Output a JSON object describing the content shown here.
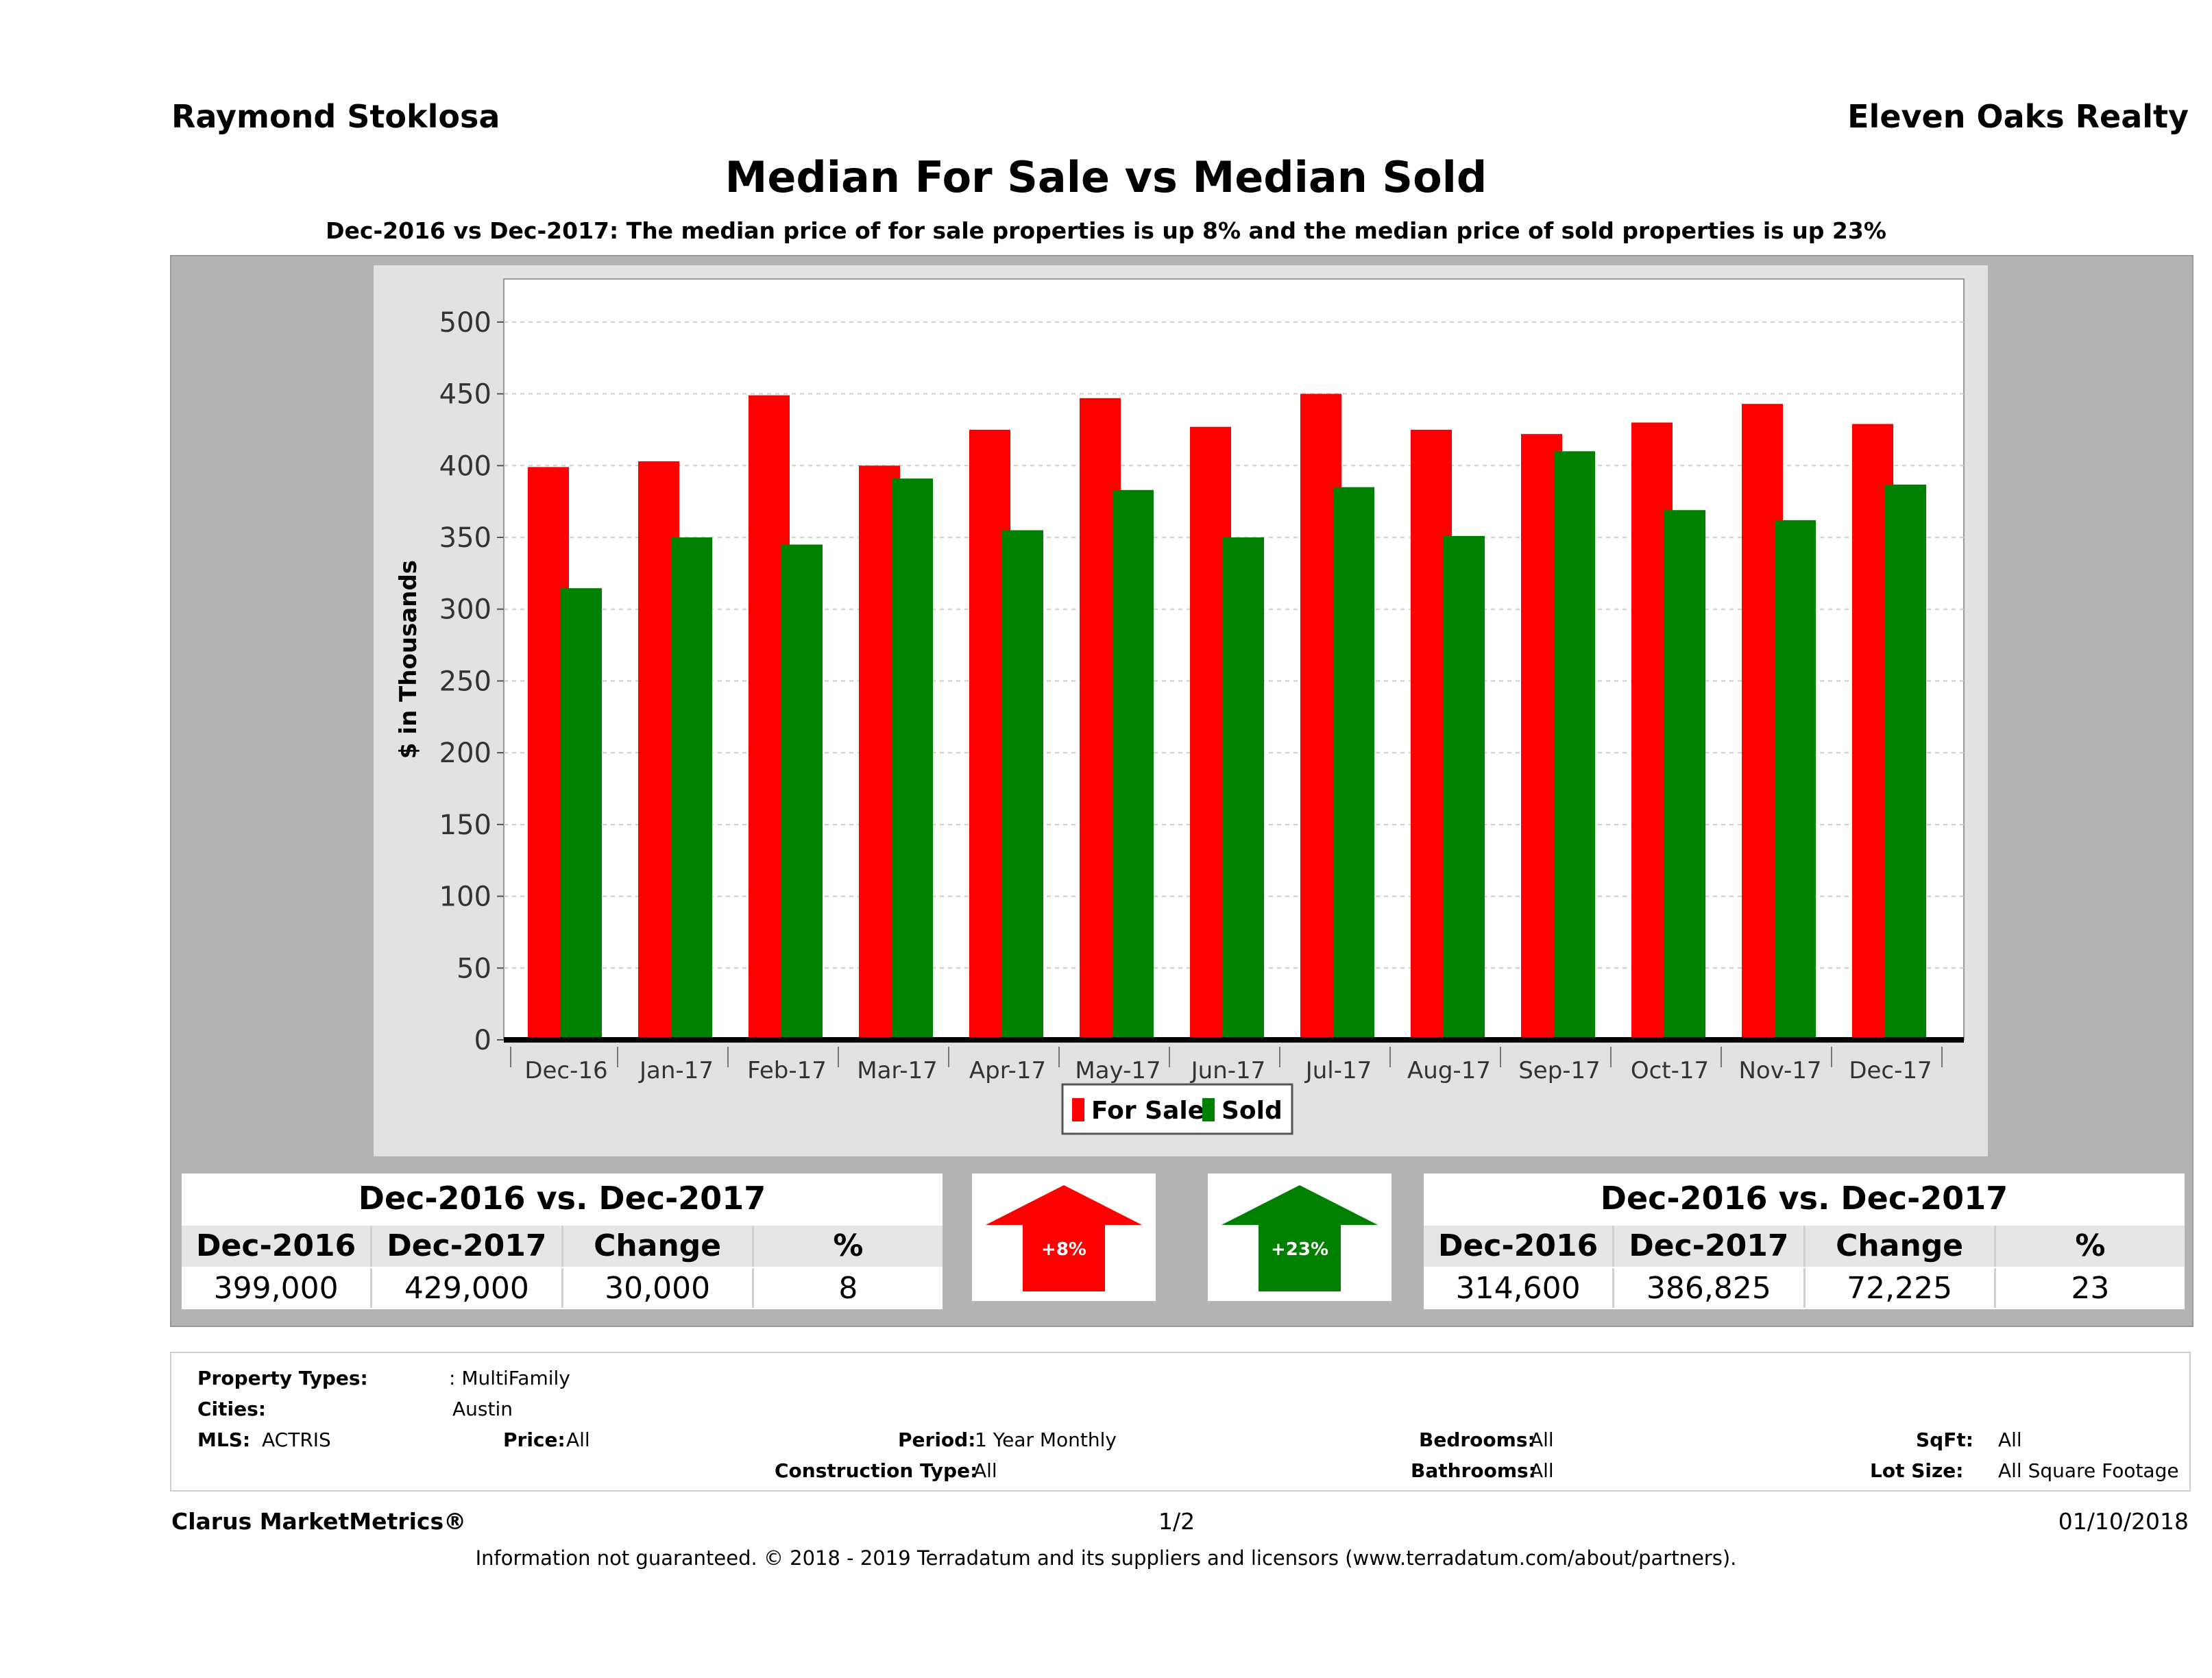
{
  "header": {
    "agent": "Raymond Stoklosa",
    "company": "Eleven Oaks Realty",
    "title": "Median For Sale vs Median Sold",
    "subtitle": "Dec-2016 vs Dec-2017: The median price of for sale properties is up 8% and the median price of sold properties is up 23%"
  },
  "chart_data": {
    "type": "bar",
    "categories": [
      "Dec-16",
      "Jan-17",
      "Feb-17",
      "Mar-17",
      "Apr-17",
      "May-17",
      "Jun-17",
      "Jul-17",
      "Aug-17",
      "Sep-17",
      "Oct-17",
      "Nov-17",
      "Dec-17"
    ],
    "series": [
      {
        "name": "For Sale",
        "color": "#ff0000",
        "values": [
          399,
          403,
          449,
          400,
          425,
          447,
          427,
          450,
          425,
          422,
          430,
          443,
          429
        ]
      },
      {
        "name": "Sold",
        "color": "#008000",
        "values": [
          314.6,
          350,
          345,
          391,
          355,
          383,
          350,
          385,
          351,
          410,
          369,
          362,
          386.8
        ]
      }
    ],
    "ylabel": "$ in Thousands",
    "ylim": [
      0,
      530
    ],
    "yticks": [
      "0",
      "50",
      "100",
      "150",
      "200",
      "250",
      "300",
      "350",
      "400",
      "450",
      "500"
    ],
    "grid": true,
    "legend": "bottom-center"
  },
  "for_sale_table": {
    "heading": "Dec-2016 vs. Dec-2017",
    "columns": [
      "Dec-2016",
      "Dec-2017",
      "Change",
      "%"
    ],
    "values": [
      "399,000",
      "429,000",
      "30,000",
      "8"
    ]
  },
  "for_sale_arrow": {
    "label": "+8%",
    "direction": "up",
    "color": "#ff0000"
  },
  "sold_arrow": {
    "label": "+23%",
    "direction": "up",
    "color": "#008000"
  },
  "sold_table": {
    "heading": "Dec-2016 vs. Dec-2017",
    "columns": [
      "Dec-2016",
      "Dec-2017",
      "Change",
      "%"
    ],
    "values": [
      "314,600",
      "386,825",
      "72,225",
      "23"
    ]
  },
  "filters": {
    "property_types_label": "Property Types:",
    "property_types_value": ": MultiFamily",
    "cities_label": "Cities:",
    "cities_value": "Austin",
    "mls_label": "MLS:",
    "mls_value": "ACTRIS",
    "price_label": "Price:",
    "price_value": "All",
    "period_label": "Period:",
    "period_value": "1 Year Monthly",
    "construction_label": "Construction Type:",
    "construction_value": "All",
    "bedrooms_label": "Bedrooms:",
    "bedrooms_value": "All",
    "bathrooms_label": "Bathrooms:",
    "bathrooms_value": "All",
    "sqft_label": "SqFt:",
    "sqft_value": "All",
    "lotsize_label": "Lot Size:",
    "lotsize_value": "All Square Footage"
  },
  "footer": {
    "brand": "Clarus MarketMetrics®",
    "page": "1/2",
    "date": "01/10/2018",
    "disclaimer": "Information not guaranteed. © 2018 - 2019 Terradatum and its suppliers and licensors (www.terradatum.com/about/partners)."
  }
}
